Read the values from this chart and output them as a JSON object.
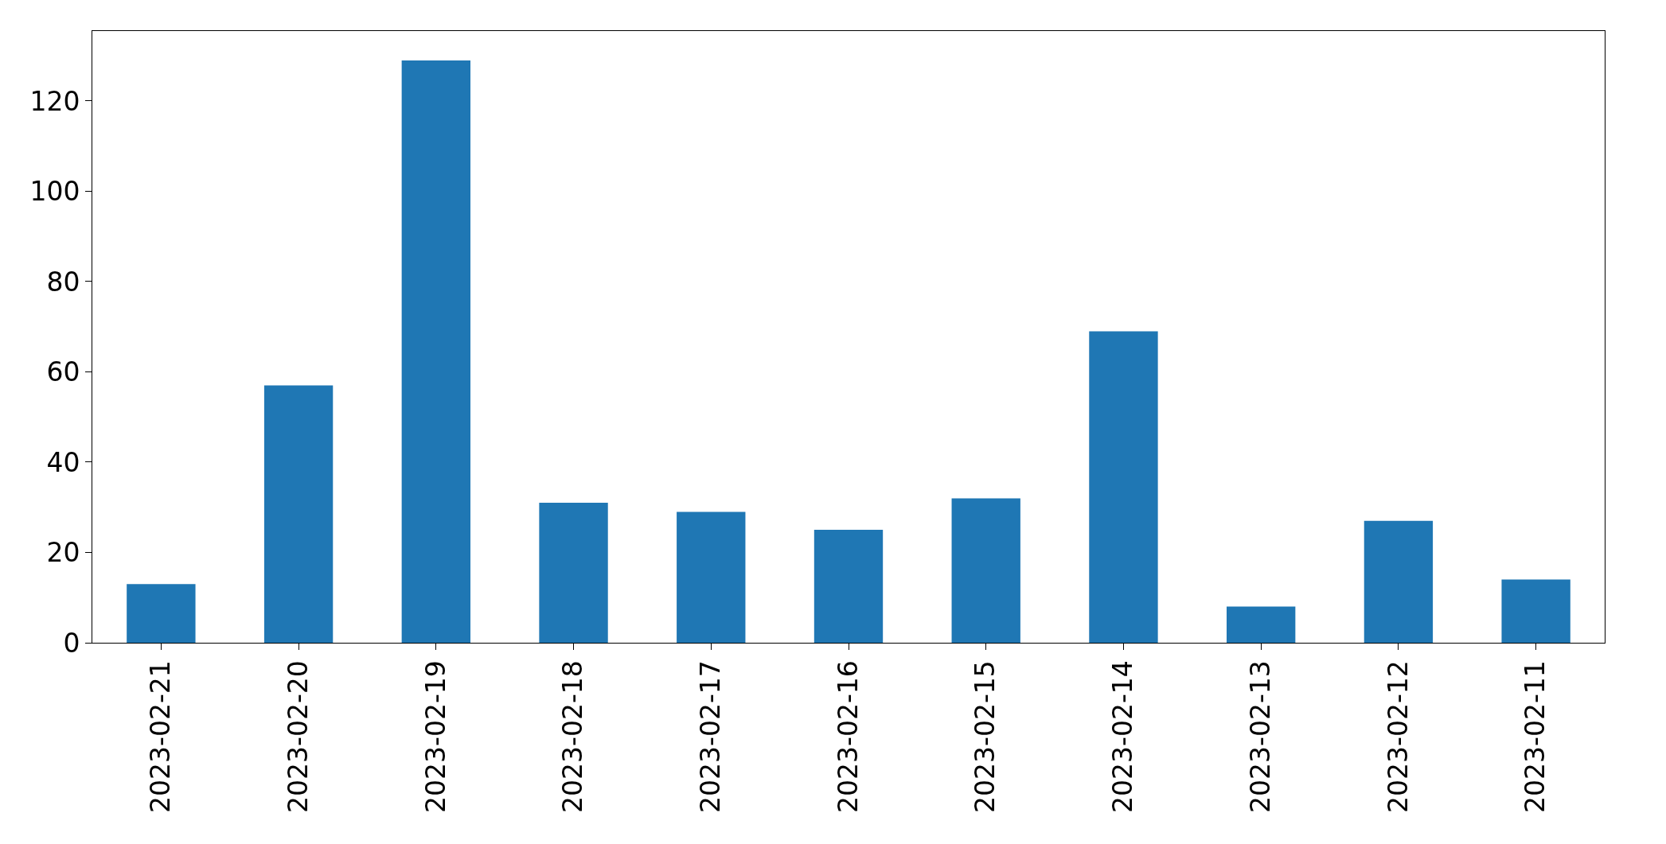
{
  "chart_data": {
    "type": "bar",
    "categories": [
      "2023-02-21",
      "2023-02-20",
      "2023-02-19",
      "2023-02-18",
      "2023-02-17",
      "2023-02-16",
      "2023-02-15",
      "2023-02-14",
      "2023-02-13",
      "2023-02-12",
      "2023-02-11"
    ],
    "values": [
      13,
      57,
      129,
      31,
      29,
      25,
      32,
      69,
      8,
      27,
      14
    ],
    "color": "#1f77b4",
    "ylim": [
      0,
      135.5
    ],
    "yticks": [
      0,
      20,
      40,
      60,
      80,
      100,
      120
    ],
    "legend": false
  }
}
